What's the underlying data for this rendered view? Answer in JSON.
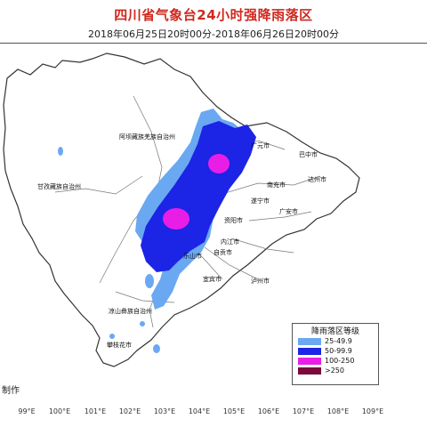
{
  "title": "四川省气象台24小时强降雨落区",
  "subtitle": "2018年06月25日20时00分-2018年06月26日20时00分",
  "credit": "制作",
  "legend": {
    "title": "降雨落区等级",
    "items": [
      {
        "label": "25-49.9",
        "color": "#6aa8f2"
      },
      {
        "label": "50-99.9",
        "color": "#1c24e6"
      },
      {
        "label": "100-250",
        "color": "#e81ee6"
      },
      {
        "label": ">250",
        "color": "#7a0a3a"
      }
    ]
  },
  "axis_ticks": [
    "99°E",
    "100°E",
    "101°E",
    "102°E",
    "103°E",
    "104°E",
    "105°E",
    "106°E",
    "107°E",
    "108°E",
    "109°E"
  ],
  "places": [
    {
      "name": "阿坝藏族羌族自治州"
    },
    {
      "name": "甘孜藏族自治州"
    },
    {
      "name": "凉山彝族自治州"
    },
    {
      "name": "攀枝花市"
    },
    {
      "name": "广元市"
    },
    {
      "name": "巴中市"
    },
    {
      "name": "达州市"
    },
    {
      "name": "南充市"
    },
    {
      "name": "遂宁市"
    },
    {
      "name": "广安市"
    },
    {
      "name": "资阳市"
    },
    {
      "name": "内江市"
    },
    {
      "name": "自贡市"
    },
    {
      "name": "乐山市"
    },
    {
      "name": "宜宾市"
    },
    {
      "name": "泸州市"
    }
  ]
}
